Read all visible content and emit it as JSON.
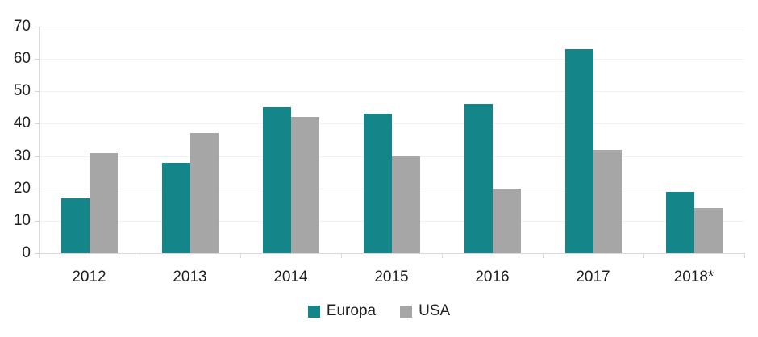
{
  "chart_data": {
    "type": "bar",
    "title": "",
    "xlabel": "",
    "ylabel": "",
    "categories": [
      "2012",
      "2013",
      "2014",
      "2015",
      "2016",
      "2017",
      "2018*"
    ],
    "series": [
      {
        "name": "Europa",
        "color": "#148588",
        "values": [
          17,
          28,
          45,
          43,
          46,
          63,
          19
        ]
      },
      {
        "name": "USA",
        "color": "#a6a6a6",
        "values": [
          31,
          37,
          42,
          30,
          20,
          32,
          14
        ]
      }
    ],
    "ylim": [
      0,
      70
    ],
    "yticks": [
      0,
      10,
      20,
      30,
      40,
      50,
      60,
      70
    ],
    "grid": true,
    "legend_position": "bottom"
  },
  "colors": {
    "gridline": "#f2f2f2",
    "axis": "#d9d9d9",
    "text": "#1f1f1f",
    "background": "#ffffff"
  }
}
